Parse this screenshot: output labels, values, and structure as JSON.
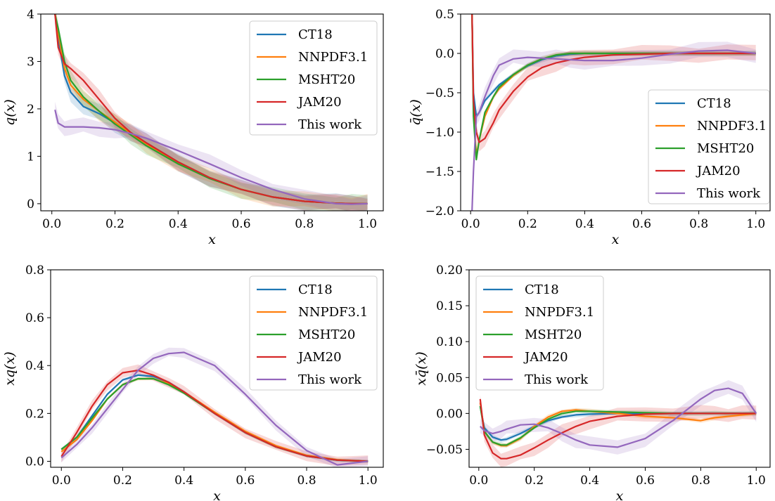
{
  "colors": {
    "CT18": "#1f77b4",
    "NNPDF3.1": "#ff7f0e",
    "MSHT20": "#2ca02c",
    "JAM20": "#d62728",
    "This work": "#9467bd"
  },
  "chart_data": [
    {
      "type": "line",
      "xlabel": "x",
      "ylabel": "q(x)",
      "xlim": [
        -0.035,
        1.05
      ],
      "ylim": [
        -0.15,
        4.0
      ],
      "xticks": [
        0.0,
        0.2,
        0.4,
        0.6,
        0.8,
        1.0
      ],
      "xtick_labels": [
        "0.0",
        "0.2",
        "0.4",
        "0.6",
        "0.8",
        "1.0"
      ],
      "yticks": [
        0,
        1,
        2,
        3,
        4
      ],
      "ytick_labels": [
        "0",
        "1",
        "2",
        "3",
        "4"
      ],
      "legend_position": "top-right",
      "legend": [
        "CT18",
        "NNPDF3.1",
        "MSHT20",
        "JAM20",
        "This work"
      ],
      "x": [
        0.01,
        0.02,
        0.04,
        0.06,
        0.1,
        0.15,
        0.2,
        0.25,
        0.3,
        0.4,
        0.5,
        0.6,
        0.7,
        0.8,
        0.9,
        0.95,
        1.0
      ],
      "series": [
        {
          "name": "CT18",
          "values": [
            4.0,
            3.5,
            2.7,
            2.35,
            2.05,
            1.9,
            1.7,
            1.5,
            1.28,
            0.88,
            0.55,
            0.3,
            0.14,
            0.05,
            0.01,
            0.0,
            0.0
          ]
        },
        {
          "name": "NNPDF3.1",
          "values": [
            4.0,
            3.6,
            2.85,
            2.5,
            2.2,
            1.95,
            1.72,
            1.48,
            1.26,
            0.87,
            0.54,
            0.3,
            0.14,
            0.05,
            0.01,
            0.0,
            0.0
          ]
        },
        {
          "name": "MSHT20",
          "values": [
            4.0,
            3.7,
            3.0,
            2.6,
            2.25,
            1.95,
            1.68,
            1.45,
            1.22,
            0.84,
            0.53,
            0.3,
            0.14,
            0.05,
            0.01,
            0.0,
            0.0
          ]
        },
        {
          "name": "JAM20",
          "values": [
            4.0,
            3.3,
            2.95,
            2.85,
            2.6,
            2.2,
            1.8,
            1.5,
            1.28,
            0.88,
            0.55,
            0.3,
            0.14,
            0.05,
            0.01,
            0.0,
            0.0
          ]
        },
        {
          "name": "This work",
          "values": [
            1.98,
            1.7,
            1.62,
            1.62,
            1.62,
            1.6,
            1.56,
            1.48,
            1.38,
            1.12,
            0.84,
            0.55,
            0.3,
            0.1,
            0.0,
            -0.01,
            0.0
          ]
        }
      ]
    },
    {
      "type": "line",
      "xlabel": "x",
      "ylabel": "q̄(x)",
      "xlim": [
        -0.035,
        1.05
      ],
      "ylim": [
        -2.0,
        0.5
      ],
      "xticks": [
        0.0,
        0.2,
        0.4,
        0.6,
        0.8,
        1.0
      ],
      "xtick_labels": [
        "0.0",
        "0.2",
        "0.4",
        "0.6",
        "0.8",
        "1.0"
      ],
      "yticks": [
        -2.0,
        -1.5,
        -1.0,
        -0.5,
        0.0,
        0.5
      ],
      "ytick_labels": [
        "−2.0",
        "−1.5",
        "−1.0",
        "−0.5",
        "0.0",
        "0.5"
      ],
      "legend_position": "center-right",
      "legend": [
        "CT18",
        "NNPDF3.1",
        "MSHT20",
        "JAM20",
        "This work"
      ],
      "x": [
        0.005,
        0.01,
        0.02,
        0.03,
        0.05,
        0.08,
        0.1,
        0.15,
        0.2,
        0.25,
        0.3,
        0.35,
        0.4,
        0.5,
        0.6,
        0.7,
        0.8,
        0.9,
        1.0
      ],
      "series": [
        {
          "name": "CT18",
          "values": [
            0.5,
            -0.5,
            -0.8,
            -0.75,
            -0.6,
            -0.48,
            -0.4,
            -0.27,
            -0.16,
            -0.08,
            -0.03,
            -0.01,
            0.0,
            0.0,
            0.0,
            0.0,
            0.0,
            0.0,
            0.0
          ]
        },
        {
          "name": "NNPDF3.1",
          "values": [
            0.5,
            -0.7,
            -1.3,
            -1.1,
            -0.8,
            -0.55,
            -0.45,
            -0.28,
            -0.15,
            -0.07,
            -0.02,
            0.0,
            0.0,
            0.0,
            0.0,
            0.0,
            0.0,
            0.0,
            0.0
          ]
        },
        {
          "name": "MSHT20",
          "values": [
            0.5,
            -0.8,
            -1.35,
            -1.1,
            -0.75,
            -0.55,
            -0.43,
            -0.27,
            -0.15,
            -0.07,
            -0.02,
            0.0,
            0.0,
            0.0,
            0.0,
            0.0,
            0.0,
            0.0,
            0.0
          ]
        },
        {
          "name": "JAM20",
          "values": [
            0.5,
            -0.6,
            -1.0,
            -1.13,
            -1.08,
            -0.88,
            -0.72,
            -0.48,
            -0.3,
            -0.18,
            -0.12,
            -0.08,
            -0.05,
            -0.02,
            -0.01,
            0.0,
            0.0,
            0.0,
            0.0
          ]
        },
        {
          "name": "This work",
          "values": [
            -2.0,
            -1.5,
            -0.8,
            -0.75,
            -0.55,
            -0.28,
            -0.15,
            -0.07,
            -0.05,
            -0.06,
            -0.07,
            -0.08,
            -0.09,
            -0.09,
            -0.06,
            -0.01,
            0.03,
            0.04,
            0.0
          ]
        }
      ]
    },
    {
      "type": "line",
      "xlabel": "x",
      "ylabel": "xq(x)",
      "xlim": [
        -0.035,
        1.05
      ],
      "ylim": [
        -0.025,
        0.8
      ],
      "xticks": [
        0.0,
        0.2,
        0.4,
        0.6,
        0.8,
        1.0
      ],
      "xtick_labels": [
        "0.0",
        "0.2",
        "0.4",
        "0.6",
        "0.8",
        "1.0"
      ],
      "yticks": [
        0.0,
        0.2,
        0.4,
        0.6,
        0.8
      ],
      "ytick_labels": [
        "0.0",
        "0.2",
        "0.4",
        "0.6",
        "0.8"
      ],
      "legend_position": "top-right",
      "legend": [
        "CT18",
        "NNPDF3.1",
        "MSHT20",
        "JAM20",
        "This work"
      ],
      "x": [
        0.0,
        0.05,
        0.1,
        0.15,
        0.2,
        0.25,
        0.3,
        0.35,
        0.4,
        0.5,
        0.6,
        0.7,
        0.8,
        0.9,
        1.0
      ],
      "series": [
        {
          "name": "CT18",
          "values": [
            0.05,
            0.1,
            0.19,
            0.28,
            0.34,
            0.36,
            0.355,
            0.33,
            0.29,
            0.2,
            0.12,
            0.06,
            0.022,
            0.005,
            0.0
          ]
        },
        {
          "name": "NNPDF3.1",
          "values": [
            0.04,
            0.09,
            0.17,
            0.26,
            0.32,
            0.345,
            0.345,
            0.325,
            0.29,
            0.205,
            0.125,
            0.065,
            0.025,
            0.006,
            0.0
          ]
        },
        {
          "name": "MSHT20",
          "values": [
            0.05,
            0.1,
            0.18,
            0.26,
            0.32,
            0.345,
            0.345,
            0.32,
            0.285,
            0.2,
            0.12,
            0.06,
            0.022,
            0.005,
            0.0
          ]
        },
        {
          "name": "JAM20",
          "values": [
            0.02,
            0.12,
            0.23,
            0.32,
            0.37,
            0.38,
            0.36,
            0.33,
            0.29,
            0.2,
            0.12,
            0.06,
            0.022,
            0.005,
            0.0
          ]
        },
        {
          "name": "This work",
          "values": [
            0.015,
            0.07,
            0.14,
            0.22,
            0.3,
            0.38,
            0.43,
            0.45,
            0.455,
            0.4,
            0.28,
            0.15,
            0.045,
            -0.015,
            0.0
          ]
        }
      ]
    },
    {
      "type": "line",
      "xlabel": "x",
      "ylabel": "xq̄(x)",
      "xlim": [
        -0.035,
        1.05
      ],
      "ylim": [
        -0.075,
        0.2
      ],
      "xticks": [
        0.0,
        0.2,
        0.4,
        0.6,
        0.8,
        1.0
      ],
      "xtick_labels": [
        "0.0",
        "0.2",
        "0.4",
        "0.6",
        "0.8",
        "1.0"
      ],
      "yticks": [
        -0.05,
        0.0,
        0.05,
        0.1,
        0.15,
        0.2
      ],
      "ytick_labels": [
        "−0.05",
        "0.00",
        "0.05",
        "0.10",
        "0.15",
        "0.20"
      ],
      "legend_position": "top-left",
      "legend": [
        "CT18",
        "NNPDF3.1",
        "MSHT20",
        "JAM20",
        "This work"
      ],
      "x": [
        0.005,
        0.02,
        0.05,
        0.08,
        0.1,
        0.15,
        0.2,
        0.25,
        0.3,
        0.35,
        0.4,
        0.5,
        0.6,
        0.7,
        0.8,
        0.85,
        0.9,
        0.95,
        1.0
      ],
      "series": [
        {
          "name": "CT18",
          "values": [
            0.01,
            -0.02,
            -0.033,
            -0.037,
            -0.036,
            -0.028,
            -0.018,
            -0.01,
            -0.005,
            -0.002,
            -0.001,
            0.0,
            0.0,
            0.0,
            0.0,
            0.0,
            0.0,
            0.0,
            0.0
          ]
        },
        {
          "name": "NNPDF3.1",
          "values": [
            0.015,
            -0.025,
            -0.04,
            -0.045,
            -0.045,
            -0.035,
            -0.018,
            -0.005,
            0.003,
            0.005,
            0.003,
            0.0,
            -0.004,
            -0.006,
            -0.01,
            -0.006,
            -0.004,
            -0.002,
            0.0
          ]
        },
        {
          "name": "MSHT20",
          "values": [
            0.01,
            -0.025,
            -0.04,
            -0.044,
            -0.044,
            -0.034,
            -0.02,
            -0.008,
            0.0,
            0.003,
            0.003,
            0.002,
            0.001,
            0.0,
            0.0,
            0.0,
            0.0,
            0.0,
            0.0
          ]
        },
        {
          "name": "JAM20",
          "values": [
            0.02,
            -0.03,
            -0.055,
            -0.063,
            -0.063,
            -0.058,
            -0.048,
            -0.037,
            -0.027,
            -0.018,
            -0.011,
            -0.004,
            -0.001,
            0.0,
            0.0,
            0.0,
            0.0,
            0.0,
            0.0
          ]
        },
        {
          "name": "This work",
          "values": [
            -0.018,
            -0.024,
            -0.028,
            -0.025,
            -0.022,
            -0.016,
            -0.015,
            -0.02,
            -0.028,
            -0.037,
            -0.044,
            -0.047,
            -0.035,
            -0.01,
            0.02,
            0.032,
            0.035,
            0.028,
            0.0
          ]
        }
      ]
    }
  ]
}
